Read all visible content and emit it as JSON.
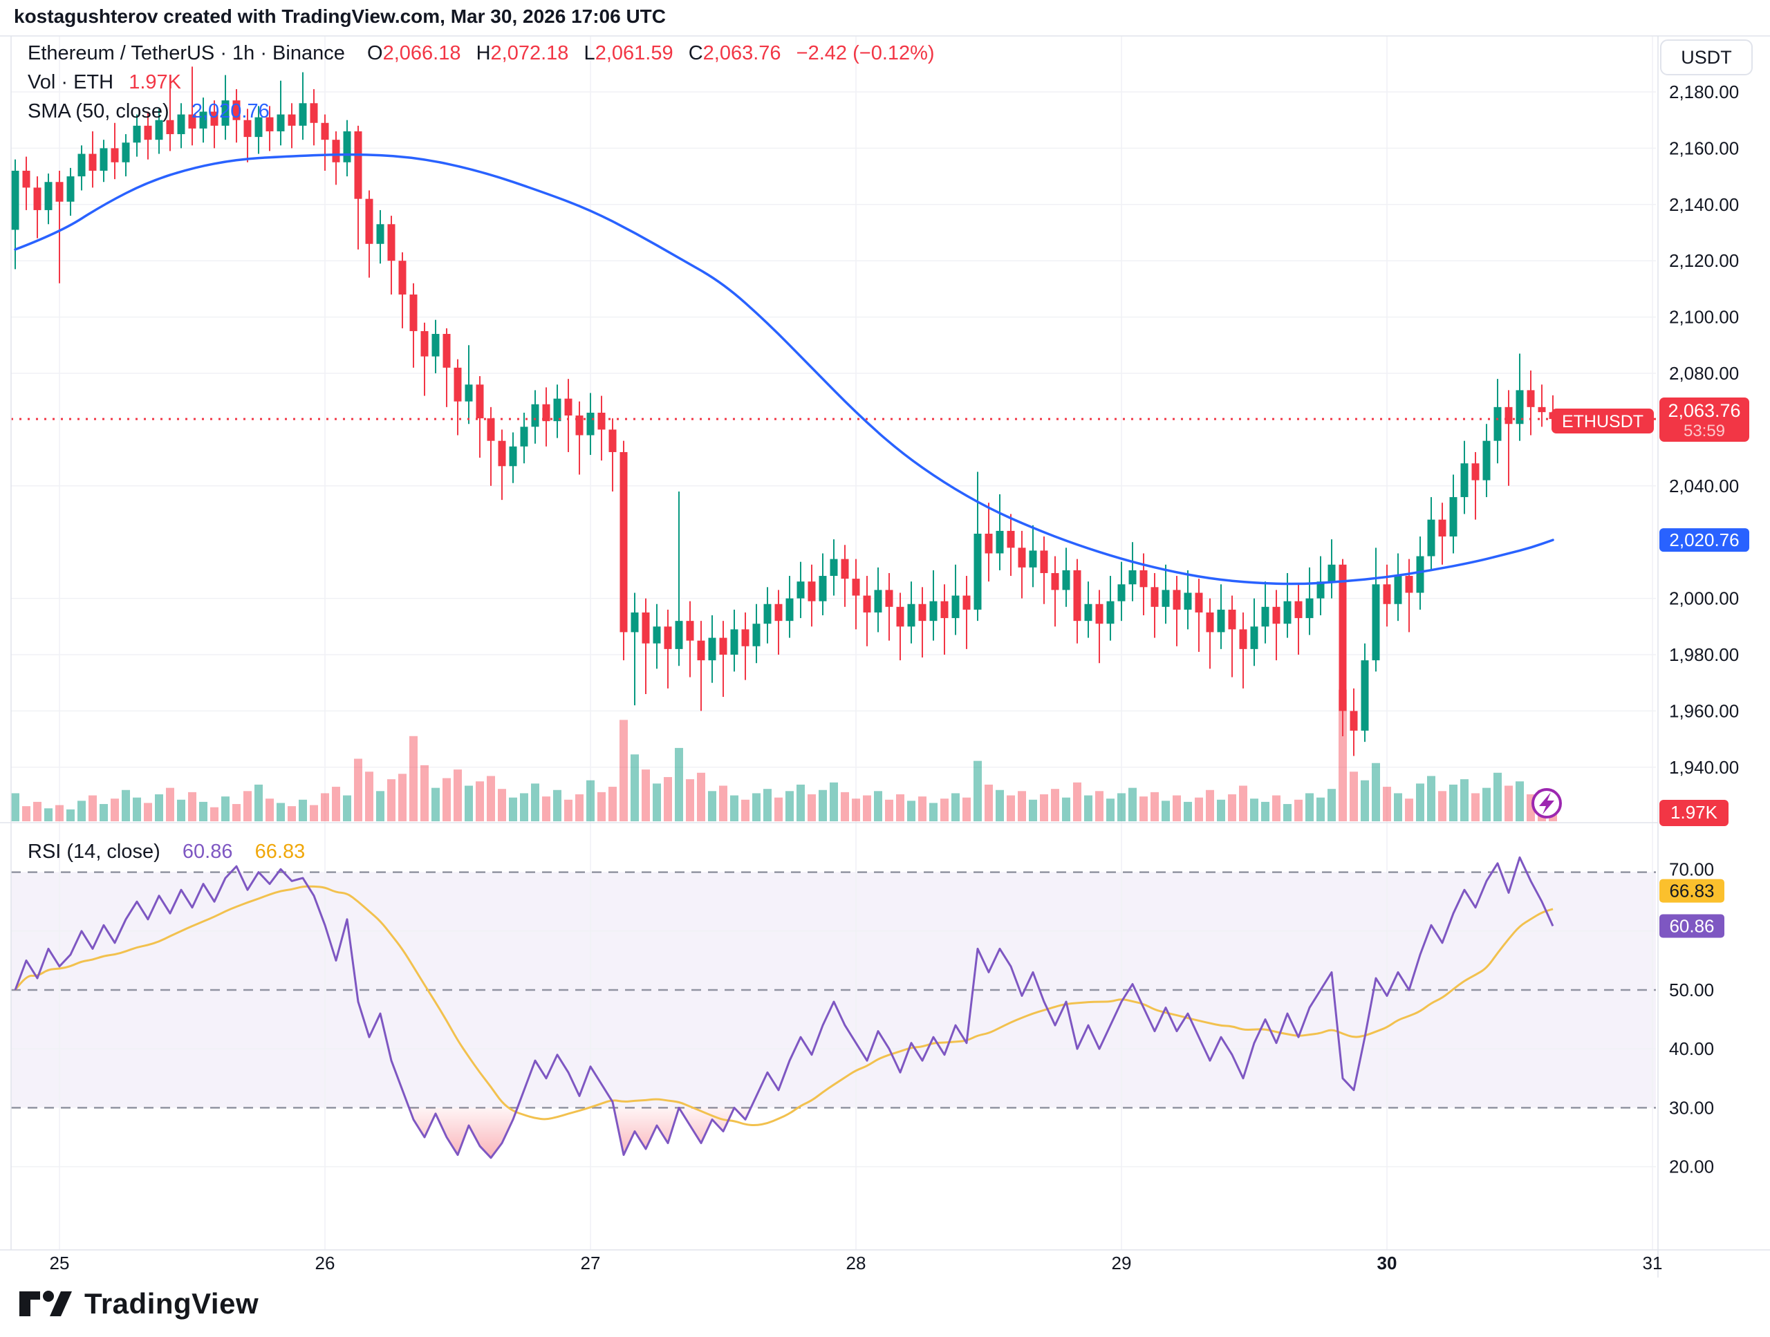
{
  "header": {
    "attribution": "kostagushterov created with TradingView.com, Mar 30, 2026 17:06 UTC"
  },
  "legend": {
    "symbol_line": "Ethereum / TetherUS · 1h · Binance",
    "ohlc": {
      "o_label": "O",
      "o": "2,066.18",
      "h_label": "H",
      "h": "2,072.18",
      "l_label": "L",
      "l": "2,061.59",
      "c_label": "C",
      "c": "2,063.76",
      "change": "−2.42 (−0.12%)"
    },
    "volume_label": "Vol · ETH",
    "volume_value": "1.97K",
    "sma_label": "SMA (50, close)",
    "sma_value": "2,020.76"
  },
  "rsi_legend": {
    "label": "RSI (14, close)",
    "rsi_value": "60.86",
    "ma_value": "66.83"
  },
  "axis": {
    "currency_button": "USDT",
    "price_ticks": [
      {
        "text": "2,180.00",
        "v": 2180
      },
      {
        "text": "2,160.00",
        "v": 2160
      },
      {
        "text": "2,140.00",
        "v": 2140
      },
      {
        "text": "2,120.00",
        "v": 2120
      },
      {
        "text": "2,100.00",
        "v": 2100
      },
      {
        "text": "2,080.00",
        "v": 2080
      },
      {
        "text": "2,040.00",
        "v": 2040
      },
      {
        "text": "2,000.00",
        "v": 2000
      },
      {
        "text": "1,980.00",
        "v": 1980
      },
      {
        "text": "1,960.00",
        "v": 1960
      },
      {
        "text": "1,940.00",
        "v": 1940
      }
    ],
    "rsi_ticks": [
      {
        "text": "70.00",
        "v": 70
      },
      {
        "text": "50.00",
        "v": 50
      },
      {
        "text": "40.00",
        "v": 40
      },
      {
        "text": "30.00",
        "v": 30
      },
      {
        "text": "20.00",
        "v": 20
      }
    ],
    "time_labels": [
      {
        "text": "25",
        "bold": false
      },
      {
        "text": "26",
        "bold": false
      },
      {
        "text": "27",
        "bold": false
      },
      {
        "text": "28",
        "bold": false
      },
      {
        "text": "29",
        "bold": false
      },
      {
        "text": "30",
        "bold": true
      },
      {
        "text": "31",
        "bold": false
      }
    ],
    "price_label": {
      "symbol": "ETHUSDT",
      "price": "2,063.76",
      "countdown": "53:59",
      "value": 2063.76
    },
    "sma_label": {
      "text": "2,020.76",
      "value": 2020.76
    },
    "volume_label": {
      "text": "1.97K"
    },
    "rsi_ma_label": {
      "text": "66.83",
      "value": 66.83
    },
    "rsi_label": {
      "text": "60.86",
      "value": 60.86
    }
  },
  "footer": {
    "logo_text": "TradingView"
  },
  "colors": {
    "up": "#089981",
    "down": "#F23645",
    "vol_up": "rgba(8,153,129,0.48)",
    "vol_down": "rgba(242,54,69,0.42)",
    "sma": "#2962FF",
    "rsi": "#7E57C2",
    "rsi_ma": "#F2C14E",
    "rsi_band_fill": "rgba(126,87,194,0.08)",
    "band_dash": "#9194A1",
    "grid": "#F0F1F5",
    "border": "#E0E3EB",
    "text": "#131722",
    "label_red": "#F23645",
    "label_blue": "#2962FF",
    "label_yellow": "#FBC02D",
    "label_purple": "#7E57C2",
    "lightning": "#9C27B0"
  },
  "chart_data": {
    "type": "candlestick+volume+rsi",
    "symbol": "ETHUSDT",
    "timeframe": "1h",
    "exchange": "Binance",
    "title": "Ethereum / TetherUS · 1h · Binance",
    "last_price": 2063.76,
    "sma_last": 2020.76,
    "rsi_last": 60.86,
    "rsi_ma_last": 66.83,
    "price_axis": {
      "ticks_step": 20,
      "visible_min": 1925,
      "visible_max": 2200
    },
    "x_axis": {
      "days": [
        25,
        26,
        27,
        28,
        29,
        30,
        31
      ],
      "grid": true
    },
    "rsi_bands": {
      "upper": 70,
      "middle": 50,
      "lower": 30
    },
    "volume_unit": "K ETH",
    "candles": [
      [
        2131,
        2156,
        2117,
        2152
      ],
      [
        2152,
        2157,
        2138,
        2146
      ],
      [
        2146,
        2150,
        2128,
        2138
      ],
      [
        2138,
        2151,
        2133,
        2148
      ],
      [
        2148,
        2152,
        2112,
        2141
      ],
      [
        2141,
        2153,
        2136,
        2150
      ],
      [
        2150,
        2161,
        2145,
        2158
      ],
      [
        2158,
        2166,
        2146,
        2152
      ],
      [
        2152,
        2163,
        2148,
        2160
      ],
      [
        2160,
        2169,
        2149,
        2155
      ],
      [
        2155,
        2165,
        2150,
        2162
      ],
      [
        2162,
        2172,
        2157,
        2168
      ],
      [
        2168,
        2173,
        2156,
        2163
      ],
      [
        2163,
        2174,
        2158,
        2170
      ],
      [
        2170,
        2183,
        2159,
        2165
      ],
      [
        2165,
        2176,
        2160,
        2172
      ],
      [
        2172,
        2189,
        2161,
        2167
      ],
      [
        2167,
        2178,
        2162,
        2173
      ],
      [
        2173,
        2177,
        2160,
        2168
      ],
      [
        2168,
        2186,
        2163,
        2177
      ],
      [
        2177,
        2181,
        2162,
        2170
      ],
      [
        2170,
        2174,
        2155,
        2164
      ],
      [
        2164,
        2175,
        2158,
        2171
      ],
      [
        2171,
        2175,
        2159,
        2166
      ],
      [
        2166,
        2184,
        2161,
        2172
      ],
      [
        2172,
        2176,
        2160,
        2168
      ],
      [
        2168,
        2187,
        2163,
        2176
      ],
      [
        2176,
        2181,
        2161,
        2169
      ],
      [
        2169,
        2172,
        2152,
        2163
      ],
      [
        2163,
        2166,
        2147,
        2155
      ],
      [
        2155,
        2170,
        2150,
        2166
      ],
      [
        2166,
        2168,
        2124,
        2142
      ],
      [
        2142,
        2145,
        2114,
        2126
      ],
      [
        2126,
        2138,
        2119,
        2133
      ],
      [
        2133,
        2136,
        2108,
        2120
      ],
      [
        2120,
        2123,
        2096,
        2108
      ],
      [
        2108,
        2112,
        2082,
        2095
      ],
      [
        2095,
        2098,
        2072,
        2086
      ],
      [
        2086,
        2099,
        2080,
        2094
      ],
      [
        2094,
        2096,
        2068,
        2082
      ],
      [
        2082,
        2085,
        2058,
        2070
      ],
      [
        2070,
        2090,
        2062,
        2076
      ],
      [
        2076,
        2079,
        2050,
        2064
      ],
      [
        2064,
        2068,
        2040,
        2056
      ],
      [
        2056,
        2060,
        2035,
        2047
      ],
      [
        2047,
        2059,
        2041,
        2054
      ],
      [
        2054,
        2066,
        2048,
        2061
      ],
      [
        2061,
        2074,
        2055,
        2069
      ],
      [
        2069,
        2075,
        2054,
        2063
      ],
      [
        2063,
        2076,
        2057,
        2071
      ],
      [
        2071,
        2078,
        2052,
        2065
      ],
      [
        2065,
        2070,
        2044,
        2058
      ],
      [
        2058,
        2073,
        2051,
        2066
      ],
      [
        2066,
        2072,
        2049,
        2060
      ],
      [
        2060,
        2064,
        2038,
        2052
      ],
      [
        2052,
        2056,
        1978,
        1988
      ],
      [
        1988,
        2002,
        1962,
        1995
      ],
      [
        1995,
        2000,
        1966,
        1984
      ],
      [
        1984,
        1998,
        1975,
        1990
      ],
      [
        1990,
        1996,
        1968,
        1982
      ],
      [
        1982,
        2038,
        1976,
        1992
      ],
      [
        1992,
        1999,
        1972,
        1985
      ],
      [
        1985,
        1992,
        1960,
        1978
      ],
      [
        1978,
        1994,
        1970,
        1986
      ],
      [
        1986,
        1992,
        1965,
        1980
      ],
      [
        1980,
        1996,
        1974,
        1989
      ],
      [
        1989,
        1995,
        1971,
        1983
      ],
      [
        1983,
        1998,
        1977,
        1991
      ],
      [
        1991,
        2004,
        1984,
        1998
      ],
      [
        1998,
        2003,
        1980,
        1992
      ],
      [
        1992,
        2008,
        1986,
        2000
      ],
      [
        2000,
        2013,
        1993,
        2006
      ],
      [
        2006,
        2012,
        1990,
        1999
      ],
      [
        1999,
        2016,
        1994,
        2008
      ],
      [
        2008,
        2021,
        2001,
        2014
      ],
      [
        2014,
        2019,
        1997,
        2007
      ],
      [
        2007,
        2014,
        1989,
        2001
      ],
      [
        2001,
        2008,
        1983,
        1995
      ],
      [
        1995,
        2011,
        1988,
        2003
      ],
      [
        2003,
        2009,
        1985,
        1997
      ],
      [
        1997,
        2002,
        1978,
        1990
      ],
      [
        1990,
        2006,
        1984,
        1998
      ],
      [
        1998,
        2004,
        1979,
        1992
      ],
      [
        1992,
        2010,
        1985,
        1999
      ],
      [
        1999,
        2005,
        1980,
        1993
      ],
      [
        1993,
        2012,
        1987,
        2001
      ],
      [
        2001,
        2008,
        1982,
        1996
      ],
      [
        1996,
        2045,
        1992,
        2023
      ],
      [
        2023,
        2034,
        2006,
        2016
      ],
      [
        2016,
        2037,
        2010,
        2024
      ],
      [
        2024,
        2030,
        2008,
        2018
      ],
      [
        2018,
        2024,
        2000,
        2011
      ],
      [
        2011,
        2026,
        2004,
        2017
      ],
      [
        2017,
        2022,
        1998,
        2009
      ],
      [
        2009,
        2015,
        1990,
        2003
      ],
      [
        2003,
        2018,
        1997,
        2010
      ],
      [
        2010,
        2014,
        1984,
        1992
      ],
      [
        1992,
        2006,
        1986,
        1998
      ],
      [
        1998,
        2003,
        1977,
        1991
      ],
      [
        1991,
        2008,
        1985,
        1999
      ],
      [
        1999,
        2013,
        1992,
        2005
      ],
      [
        2005,
        2020,
        1999,
        2010
      ],
      [
        2010,
        2016,
        1994,
        2004
      ],
      [
        2004,
        2009,
        1986,
        1997
      ],
      [
        1997,
        2012,
        1991,
        2003
      ],
      [
        2003,
        2008,
        1983,
        1996
      ],
      [
        1996,
        2010,
        1989,
        2002
      ],
      [
        2002,
        2007,
        1981,
        1995
      ],
      [
        1995,
        2000,
        1975,
        1988
      ],
      [
        1988,
        2005,
        1982,
        1996
      ],
      [
        1996,
        2001,
        1972,
        1989
      ],
      [
        1989,
        1995,
        1968,
        1982
      ],
      [
        1982,
        2000,
        1976,
        1990
      ],
      [
        1990,
        2006,
        1984,
        1997
      ],
      [
        1997,
        2003,
        1978,
        1991
      ],
      [
        1991,
        2009,
        1986,
        1999
      ],
      [
        1999,
        2005,
        1980,
        1993
      ],
      [
        1993,
        2011,
        1987,
        2000
      ],
      [
        2000,
        2015,
        1994,
        2006
      ],
      [
        2006,
        2021,
        2000,
        2012
      ],
      [
        2012,
        2014,
        1951,
        1960
      ],
      [
        1960,
        1968,
        1944,
        1953
      ],
      [
        1953,
        1984,
        1949,
        1978
      ],
      [
        1978,
        2018,
        1974,
        2005
      ],
      [
        2005,
        2012,
        1990,
        1998
      ],
      [
        1998,
        2016,
        1992,
        2008
      ],
      [
        2008,
        2014,
        1988,
        2002
      ],
      [
        2002,
        2022,
        1996,
        2015
      ],
      [
        2015,
        2036,
        2010,
        2028
      ],
      [
        2028,
        2034,
        2012,
        2022
      ],
      [
        2022,
        2044,
        2016,
        2036
      ],
      [
        2036,
        2056,
        2030,
        2048
      ],
      [
        2048,
        2052,
        2028,
        2042
      ],
      [
        2042,
        2062,
        2036,
        2056
      ],
      [
        2056,
        2078,
        2048,
        2068
      ],
      [
        2068,
        2074,
        2040,
        2062
      ],
      [
        2062,
        2087,
        2056,
        2074
      ],
      [
        2074,
        2081,
        2058,
        2068
      ],
      [
        2068,
        2076,
        2061,
        2066.2
      ],
      [
        2066.18,
        2072.18,
        2061.59,
        2063.76
      ]
    ],
    "volumes_k": [
      2.6,
      1.4,
      1.8,
      1.2,
      1.5,
      1.1,
      1.9,
      2.4,
      1.6,
      2.1,
      2.9,
      2.2,
      1.7,
      2.5,
      3.1,
      2.0,
      2.7,
      1.8,
      1.3,
      2.3,
      1.6,
      2.8,
      3.4,
      2.1,
      1.7,
      1.4,
      2.0,
      1.5,
      2.6,
      3.2,
      2.4,
      5.8,
      4.6,
      2.8,
      3.9,
      4.4,
      7.9,
      5.2,
      3.1,
      4.0,
      4.8,
      3.3,
      3.7,
      4.2,
      3.0,
      2.2,
      2.6,
      3.5,
      2.3,
      2.9,
      2.0,
      2.5,
      3.8,
      2.7,
      3.2,
      9.4,
      6.2,
      4.8,
      3.5,
      4.1,
      6.8,
      3.9,
      4.5,
      2.8,
      3.3,
      2.4,
      2.0,
      2.6,
      3.0,
      2.2,
      2.8,
      3.4,
      2.5,
      2.9,
      3.6,
      2.7,
      2.1,
      2.4,
      2.8,
      2.0,
      2.5,
      1.9,
      2.3,
      1.7,
      2.1,
      2.6,
      2.2,
      5.6,
      3.4,
      2.9,
      2.4,
      2.8,
      2.0,
      2.5,
      3.0,
      2.2,
      3.6,
      2.4,
      2.8,
      2.1,
      2.6,
      3.1,
      2.3,
      2.7,
      1.9,
      2.4,
      1.8,
      2.2,
      2.9,
      2.0,
      2.5,
      3.3,
      2.1,
      1.8,
      2.4,
      1.6,
      2.0,
      2.6,
      2.2,
      3.0,
      12.2,
      4.6,
      3.8,
      5.4,
      3.2,
      2.6,
      2.1,
      3.5,
      4.2,
      2.8,
      3.4,
      3.9,
      2.6,
      3.1,
      4.5,
      3.3,
      3.7,
      2.5,
      2.9,
      1.97
    ],
    "rsi": [
      50,
      55,
      52,
      57,
      54,
      56,
      60,
      57,
      61,
      58,
      62,
      65,
      62,
      66,
      63,
      67,
      64,
      68,
      65,
      69,
      71,
      67,
      70,
      68,
      70.5,
      68.5,
      69,
      66,
      61,
      55,
      62,
      48,
      42,
      46,
      38,
      33,
      28,
      25,
      29,
      25,
      22,
      27,
      23.5,
      21.5,
      24,
      28,
      33,
      38,
      35,
      39,
      36,
      32,
      37,
      34,
      31,
      22,
      26,
      23,
      27,
      24,
      30,
      27,
      24,
      28,
      26,
      30,
      28,
      32,
      36,
      33,
      38,
      42,
      39,
      44,
      48,
      44,
      41,
      38,
      43,
      40,
      36,
      41,
      38,
      42,
      39,
      44,
      41,
      57,
      53,
      57,
      54,
      49,
      53,
      48,
      44,
      48,
      40,
      44,
      40,
      44,
      48,
      51,
      47,
      43,
      47,
      43,
      46,
      42,
      38,
      42,
      39,
      35,
      41,
      45,
      41,
      46,
      42,
      47,
      50,
      53,
      35,
      33,
      42,
      52,
      49,
      53,
      50,
      56,
      61,
      58,
      63,
      67,
      64,
      68.5,
      71.5,
      66.5,
      72.5,
      68.5,
      65,
      60.86
    ],
    "sma_points": [
      [
        0,
        2124
      ],
      [
        4,
        2130
      ],
      [
        8,
        2140
      ],
      [
        12,
        2148
      ],
      [
        16,
        2153
      ],
      [
        20,
        2156
      ],
      [
        24,
        2157
      ],
      [
        30,
        2158
      ],
      [
        36,
        2157
      ],
      [
        42,
        2152
      ],
      [
        48,
        2144
      ],
      [
        52,
        2138
      ],
      [
        56,
        2130
      ],
      [
        60,
        2121
      ],
      [
        64,
        2112
      ],
      [
        68,
        2098
      ],
      [
        72,
        2082
      ],
      [
        76,
        2066
      ],
      [
        80,
        2052
      ],
      [
        84,
        2041
      ],
      [
        88,
        2032
      ],
      [
        92,
        2025
      ],
      [
        96,
        2019
      ],
      [
        100,
        2014
      ],
      [
        104,
        2010
      ],
      [
        108,
        2007
      ],
      [
        112,
        2005.5
      ],
      [
        116,
        2005
      ],
      [
        120,
        2006
      ],
      [
        124,
        2007.5
      ],
      [
        128,
        2010
      ],
      [
        132,
        2013
      ],
      [
        135,
        2016
      ],
      [
        137,
        2018
      ],
      [
        139,
        2020.76
      ]
    ]
  }
}
